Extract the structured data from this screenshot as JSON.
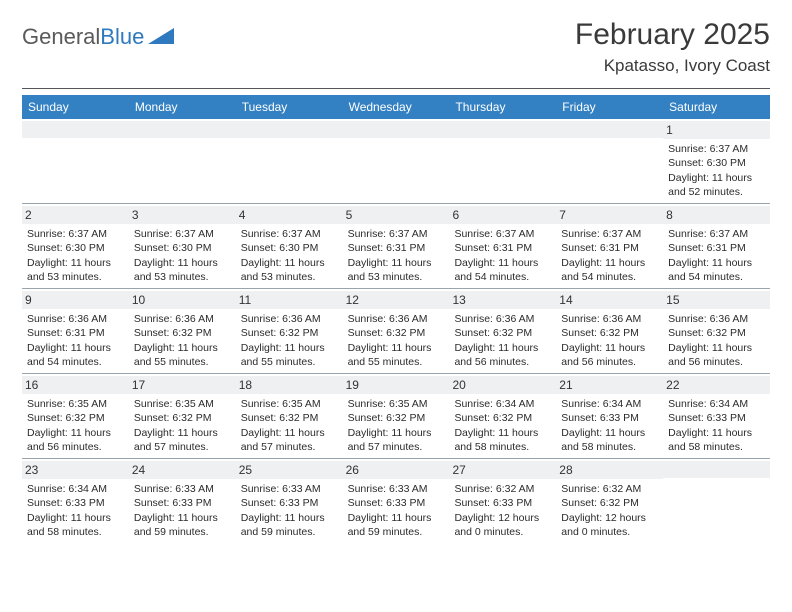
{
  "logo": {
    "text1": "General",
    "text2": "Blue"
  },
  "title": "February 2025",
  "location": "Kpatasso, Ivory Coast",
  "colors": {
    "header_bg": "#3380c2",
    "header_text": "#ffffff",
    "daynum_bg": "#eef0f1",
    "border": "#9aa4ad",
    "logo_gray": "#5a5a5a",
    "logo_blue": "#2f7abf"
  },
  "days_of_week": [
    "Sunday",
    "Monday",
    "Tuesday",
    "Wednesday",
    "Thursday",
    "Friday",
    "Saturday"
  ],
  "weeks": [
    [
      {
        "n": "",
        "sr": "",
        "ss": "",
        "dl": ""
      },
      {
        "n": "",
        "sr": "",
        "ss": "",
        "dl": ""
      },
      {
        "n": "",
        "sr": "",
        "ss": "",
        "dl": ""
      },
      {
        "n": "",
        "sr": "",
        "ss": "",
        "dl": ""
      },
      {
        "n": "",
        "sr": "",
        "ss": "",
        "dl": ""
      },
      {
        "n": "",
        "sr": "",
        "ss": "",
        "dl": ""
      },
      {
        "n": "1",
        "sr": "Sunrise: 6:37 AM",
        "ss": "Sunset: 6:30 PM",
        "dl": "Daylight: 11 hours and 52 minutes."
      }
    ],
    [
      {
        "n": "2",
        "sr": "Sunrise: 6:37 AM",
        "ss": "Sunset: 6:30 PM",
        "dl": "Daylight: 11 hours and 53 minutes."
      },
      {
        "n": "3",
        "sr": "Sunrise: 6:37 AM",
        "ss": "Sunset: 6:30 PM",
        "dl": "Daylight: 11 hours and 53 minutes."
      },
      {
        "n": "4",
        "sr": "Sunrise: 6:37 AM",
        "ss": "Sunset: 6:30 PM",
        "dl": "Daylight: 11 hours and 53 minutes."
      },
      {
        "n": "5",
        "sr": "Sunrise: 6:37 AM",
        "ss": "Sunset: 6:31 PM",
        "dl": "Daylight: 11 hours and 53 minutes."
      },
      {
        "n": "6",
        "sr": "Sunrise: 6:37 AM",
        "ss": "Sunset: 6:31 PM",
        "dl": "Daylight: 11 hours and 54 minutes."
      },
      {
        "n": "7",
        "sr": "Sunrise: 6:37 AM",
        "ss": "Sunset: 6:31 PM",
        "dl": "Daylight: 11 hours and 54 minutes."
      },
      {
        "n": "8",
        "sr": "Sunrise: 6:37 AM",
        "ss": "Sunset: 6:31 PM",
        "dl": "Daylight: 11 hours and 54 minutes."
      }
    ],
    [
      {
        "n": "9",
        "sr": "Sunrise: 6:36 AM",
        "ss": "Sunset: 6:31 PM",
        "dl": "Daylight: 11 hours and 54 minutes."
      },
      {
        "n": "10",
        "sr": "Sunrise: 6:36 AM",
        "ss": "Sunset: 6:32 PM",
        "dl": "Daylight: 11 hours and 55 minutes."
      },
      {
        "n": "11",
        "sr": "Sunrise: 6:36 AM",
        "ss": "Sunset: 6:32 PM",
        "dl": "Daylight: 11 hours and 55 minutes."
      },
      {
        "n": "12",
        "sr": "Sunrise: 6:36 AM",
        "ss": "Sunset: 6:32 PM",
        "dl": "Daylight: 11 hours and 55 minutes."
      },
      {
        "n": "13",
        "sr": "Sunrise: 6:36 AM",
        "ss": "Sunset: 6:32 PM",
        "dl": "Daylight: 11 hours and 56 minutes."
      },
      {
        "n": "14",
        "sr": "Sunrise: 6:36 AM",
        "ss": "Sunset: 6:32 PM",
        "dl": "Daylight: 11 hours and 56 minutes."
      },
      {
        "n": "15",
        "sr": "Sunrise: 6:36 AM",
        "ss": "Sunset: 6:32 PM",
        "dl": "Daylight: 11 hours and 56 minutes."
      }
    ],
    [
      {
        "n": "16",
        "sr": "Sunrise: 6:35 AM",
        "ss": "Sunset: 6:32 PM",
        "dl": "Daylight: 11 hours and 56 minutes."
      },
      {
        "n": "17",
        "sr": "Sunrise: 6:35 AM",
        "ss": "Sunset: 6:32 PM",
        "dl": "Daylight: 11 hours and 57 minutes."
      },
      {
        "n": "18",
        "sr": "Sunrise: 6:35 AM",
        "ss": "Sunset: 6:32 PM",
        "dl": "Daylight: 11 hours and 57 minutes."
      },
      {
        "n": "19",
        "sr": "Sunrise: 6:35 AM",
        "ss": "Sunset: 6:32 PM",
        "dl": "Daylight: 11 hours and 57 minutes."
      },
      {
        "n": "20",
        "sr": "Sunrise: 6:34 AM",
        "ss": "Sunset: 6:32 PM",
        "dl": "Daylight: 11 hours and 58 minutes."
      },
      {
        "n": "21",
        "sr": "Sunrise: 6:34 AM",
        "ss": "Sunset: 6:33 PM",
        "dl": "Daylight: 11 hours and 58 minutes."
      },
      {
        "n": "22",
        "sr": "Sunrise: 6:34 AM",
        "ss": "Sunset: 6:33 PM",
        "dl": "Daylight: 11 hours and 58 minutes."
      }
    ],
    [
      {
        "n": "23",
        "sr": "Sunrise: 6:34 AM",
        "ss": "Sunset: 6:33 PM",
        "dl": "Daylight: 11 hours and 58 minutes."
      },
      {
        "n": "24",
        "sr": "Sunrise: 6:33 AM",
        "ss": "Sunset: 6:33 PM",
        "dl": "Daylight: 11 hours and 59 minutes."
      },
      {
        "n": "25",
        "sr": "Sunrise: 6:33 AM",
        "ss": "Sunset: 6:33 PM",
        "dl": "Daylight: 11 hours and 59 minutes."
      },
      {
        "n": "26",
        "sr": "Sunrise: 6:33 AM",
        "ss": "Sunset: 6:33 PM",
        "dl": "Daylight: 11 hours and 59 minutes."
      },
      {
        "n": "27",
        "sr": "Sunrise: 6:32 AM",
        "ss": "Sunset: 6:33 PM",
        "dl": "Daylight: 12 hours and 0 minutes."
      },
      {
        "n": "28",
        "sr": "Sunrise: 6:32 AM",
        "ss": "Sunset: 6:32 PM",
        "dl": "Daylight: 12 hours and 0 minutes."
      },
      {
        "n": "",
        "sr": "",
        "ss": "",
        "dl": ""
      }
    ]
  ]
}
